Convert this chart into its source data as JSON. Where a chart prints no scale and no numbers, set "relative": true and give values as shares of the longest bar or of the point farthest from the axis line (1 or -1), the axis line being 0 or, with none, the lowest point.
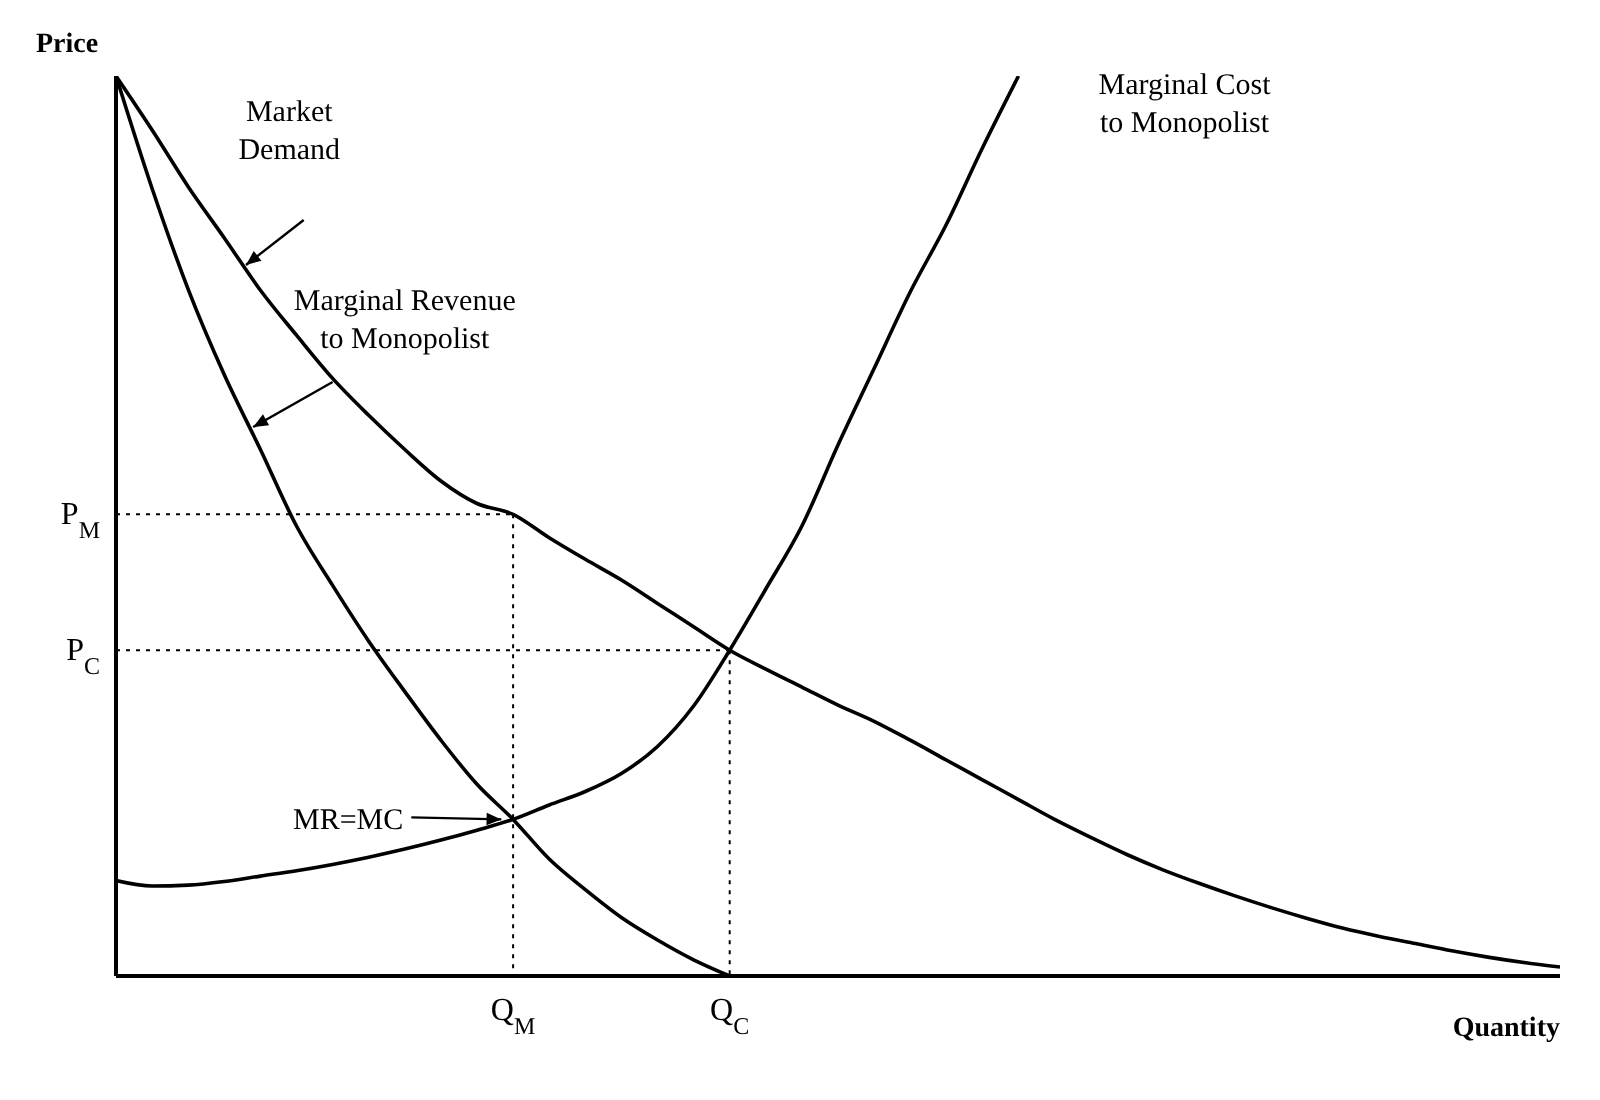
{
  "chart_data": {
    "type": "line",
    "xlabel": "Quantity",
    "ylabel": "Price",
    "relative": true,
    "marker": "none",
    "categories": [
      null,
      null,
      null,
      null,
      null,
      null,
      null,
      null,
      null,
      null,
      null,
      "Q$_{M}$",
      null,
      null,
      null,
      null,
      null,
      "Q$_{C}$",
      null,
      null,
      null,
      null,
      null,
      null,
      null,
      null,
      null,
      null,
      null,
      null,
      null,
      null,
      null,
      null,
      null,
      null,
      null,
      null,
      null,
      null,
      null
    ],
    "series": [
      {
        "name": "Market Demand",
        "color": "#000000",
        "values": [
          1,
          0.94,
          0.877,
          0.82,
          0.762,
          0.712,
          0.664,
          0.623,
          0.585,
          0.55,
          0.525,
          0.513,
          0.487,
          0.463,
          0.44,
          0.414,
          0.388,
          0.362,
          0.341,
          0.321,
          0.301,
          0.283,
          0.262,
          0.24,
          0.218,
          0.196,
          0.174,
          0.154,
          0.135,
          0.118,
          0.103,
          0.089,
          0.076,
          0.064,
          0.053,
          0.044,
          0.036,
          0.028,
          0.021,
          0.015,
          0.01
        ]
      },
      {
        "name": "Marginal Revenue to Monopolist",
        "color": "#000000",
        "values": [
          1,
          0.875,
          0.763,
          0.668,
          0.585,
          0.5,
          0.434,
          0.372,
          0.316,
          0.262,
          0.213,
          0.174,
          0.13,
          0.096,
          0.065,
          0.04,
          0.018,
          0,
          null,
          null,
          null,
          null,
          null,
          null,
          null,
          null,
          null,
          null,
          null,
          null,
          null,
          null,
          null,
          null,
          null,
          null,
          null,
          null,
          null,
          null,
          null
        ]
      },
      {
        "name": "Marginal Cost to Monopolist",
        "color": "#000000",
        "values": [
          0.106,
          0.1,
          0.101,
          0.105,
          0.111,
          0.117,
          0.124,
          0.132,
          0.141,
          0.151,
          0.162,
          0.174,
          0.19,
          0.205,
          0.225,
          0.255,
          0.3,
          0.362,
          0.43,
          0.5,
          0.59,
          0.675,
          0.76,
          0.835,
          0.92,
          1,
          null,
          null,
          null,
          null,
          null,
          null,
          null,
          null,
          null,
          null,
          null,
          null,
          null,
          null,
          null
        ]
      },
      {
        "name": "P$_{M}$",
        "color": "#000000",
        "line_style": "dotted",
        "values": [
          0.513,
          0.513,
          0.513,
          0.513,
          0.513,
          0.513,
          0.513,
          0.513,
          0.513,
          0.513,
          0.513,
          0.513,
          null,
          null,
          null,
          null,
          null,
          null,
          null,
          null,
          null,
          null,
          null,
          null,
          null,
          null,
          null,
          null,
          null,
          null,
          null,
          null,
          null,
          null,
          null,
          null,
          null,
          null,
          null,
          null,
          null
        ]
      },
      {
        "name": "P$_{C}$",
        "color": "#000000",
        "line_style": "dotted",
        "values": [
          0.362,
          0.362,
          0.362,
          0.362,
          0.362,
          0.362,
          0.362,
          0.362,
          0.362,
          0.362,
          0.362,
          0.362,
          0.362,
          0.362,
          0.362,
          0.362,
          0.362,
          0.362,
          null,
          null,
          null,
          null,
          null,
          null,
          null,
          null,
          null,
          null,
          null,
          null,
          null,
          null,
          null,
          null,
          null,
          null,
          null,
          null,
          null,
          null,
          null
        ]
      }
    ],
    "ref_lines": [
      {
        "axis": "x",
        "value": "Q$_{M}$",
        "line_style": "dotted",
        "color": "#000000"
      },
      {
        "axis": "x",
        "value": "Q$_{C}$",
        "line_style": "dotted",
        "color": "#000000"
      }
    ],
    "annotations": [
      "MR=MC"
    ]
  }
}
